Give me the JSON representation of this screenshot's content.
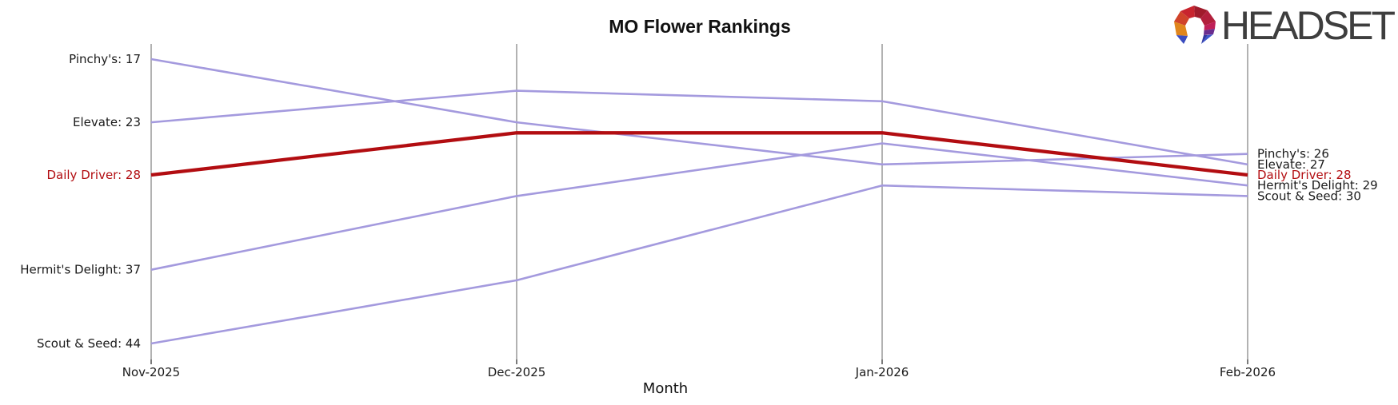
{
  "header": {
    "logo_text": "HEADSET",
    "logo_text_color": "#3e3e3e",
    "logo_mark_colors": {
      "red": "#c8242e",
      "dark_red": "#a01b2b",
      "vermillion": "#d0432a",
      "orange": "#e0861c",
      "crimson": "#b2203c",
      "magenta": "#c02058",
      "purple": "#6a2d8f",
      "blue": "#3c55cc",
      "indigo": "#31379e",
      "navy": "#2e3f9e"
    }
  },
  "chart_data": {
    "type": "line",
    "title": "MO Flower Rankings",
    "xlabel": "Month",
    "x": [
      "Nov-2025",
      "Dec-2025",
      "Jan-2026",
      "Feb-2026"
    ],
    "series": [
      {
        "name": "Pinchy's",
        "values": [
          17,
          23,
          27,
          26
        ],
        "color": "#a49ade",
        "highlight": false
      },
      {
        "name": "Elevate",
        "values": [
          23,
          20,
          21,
          27
        ],
        "color": "#a49ade",
        "highlight": false
      },
      {
        "name": "Daily Driver",
        "values": [
          28,
          24,
          24,
          28
        ],
        "color": "#b20d11",
        "highlight": true
      },
      {
        "name": "Hermit's Delight",
        "values": [
          37,
          30,
          25,
          29
        ],
        "color": "#a49ade",
        "highlight": false
      },
      {
        "name": "Scout & Seed",
        "values": [
          44,
          38,
          29,
          30
        ],
        "color": "#a49ade",
        "highlight": false
      }
    ],
    "left_labels": [
      "Pinchy's: 17",
      "Elevate: 23",
      "Daily Driver: 28",
      "Hermit's Delight: 37",
      "Scout & Seed: 44"
    ],
    "right_labels": [
      "Pinchy's: 26",
      "Elevate: 27",
      "Daily Driver: 28",
      "Hermit's Delight: 29",
      "Scout & Seed: 30"
    ],
    "y_axis_inverted": true,
    "ylim": [
      15.5,
      45.5
    ],
    "grid": "vertical-only",
    "legend": "none",
    "colors": {
      "line_default": "#a49ade",
      "line_highlight": "#b20d11",
      "gridline": "#a9a9a9",
      "tick": "#333333",
      "label_text": "#1a1a1a"
    }
  }
}
